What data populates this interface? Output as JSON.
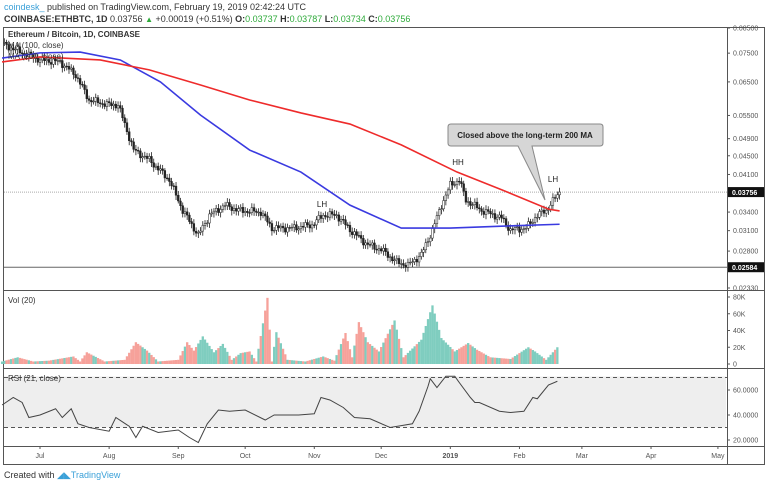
{
  "header": {
    "user": "coindesk_",
    "published": " published on TradingView.com, February 19, 2019 02:42:24 UTC",
    "symbol": "COINBASE:ETHBTC, 1D",
    "last": "0.03756",
    "change": "+0.00019 (+0.51%)",
    "o_label": "O:",
    "o": "0.03737",
    "h_label": "H:",
    "h": "0.03787",
    "l_label": "L:",
    "l": "0.03734",
    "c_label": "C:",
    "c": "0.03756"
  },
  "footer": {
    "created_with": "Created with",
    "brand": "TradingView"
  },
  "colors": {
    "ma100": "#3a3ae0",
    "ma200": "#ee2b2b",
    "vol_up": "#7fcdbf",
    "vol_down": "#f6a19a",
    "candle": "#222222"
  },
  "chart_data": [
    {
      "type": "line",
      "title": "Ethereum / Bitcoin, 1D, COINBASE",
      "scale": "log",
      "ylim": [
        0.0233,
        0.085
      ],
      "y_ticks": [
        "0.08500",
        "0.07500",
        "0.06500",
        "0.05500",
        "0.04900",
        "0.04500",
        "0.04100",
        "0.03400",
        "0.03100",
        "0.02800",
        "0.02330"
      ],
      "price_labels": [
        "0.03756",
        "0.02584"
      ],
      "x_ticks": [
        "Jul",
        "Aug",
        "Sep",
        "Oct",
        "Nov",
        "Dec",
        "2019",
        "Feb",
        "Mar",
        "Apr",
        "May"
      ],
      "series": [
        {
          "name": "Ethereum / Bitcoin",
          "style": "candles",
          "points": [
            [
              "2018-06-15",
              0.0781
            ],
            [
              "2018-07-01",
              0.0725
            ],
            [
              "2018-07-10",
              0.0718
            ],
            [
              "2018-07-17",
              0.0673
            ],
            [
              "2018-07-23",
              0.0594
            ],
            [
              "2018-08-01",
              0.058
            ],
            [
              "2018-08-05",
              0.058
            ],
            [
              "2018-08-12",
              0.0463
            ],
            [
              "2018-08-19",
              0.0441
            ],
            [
              "2018-08-28",
              0.0399
            ],
            [
              "2018-09-03",
              0.0343
            ],
            [
              "2018-09-10",
              0.0303
            ],
            [
              "2018-09-15",
              0.0335
            ],
            [
              "2018-09-22",
              0.0352
            ],
            [
              "2018-09-28",
              0.0343
            ],
            [
              "2018-10-08",
              0.034
            ],
            [
              "2018-10-13",
              0.0314
            ],
            [
              "2018-10-22",
              0.0314
            ],
            [
              "2018-10-31",
              0.0319
            ],
            [
              "2018-11-05",
              0.0335
            ],
            [
              "2018-11-11",
              0.0335
            ],
            [
              "2018-11-18",
              0.0308
            ],
            [
              "2018-11-25",
              0.0289
            ],
            [
              "2018-12-01",
              0.0282
            ],
            [
              "2018-12-08",
              0.0265
            ],
            [
              "2018-12-13",
              0.0261
            ],
            [
              "2018-12-19",
              0.0275
            ],
            [
              "2018-12-24",
              0.0311
            ],
            [
              "2018-12-28",
              0.0352
            ],
            [
              "2019-01-01",
              0.0389
            ],
            [
              "2019-01-05",
              0.0399
            ],
            [
              "2019-01-08",
              0.0361
            ],
            [
              "2019-01-15",
              0.0343
            ],
            [
              "2019-01-24",
              0.033
            ],
            [
              "2019-01-28",
              0.0311
            ],
            [
              "2019-02-04",
              0.0314
            ],
            [
              "2019-02-09",
              0.0335
            ],
            [
              "2019-02-13",
              0.0343
            ],
            [
              "2019-02-19",
              0.03756
            ]
          ]
        },
        {
          "name": "MA (100, close)",
          "color": "#3a3ae0",
          "points": [
            [
              "2018-06-14",
              0.0732
            ],
            [
              "2018-07-01",
              0.0751
            ],
            [
              "2018-07-19",
              0.0754
            ],
            [
              "2018-08-06",
              0.0725
            ],
            [
              "2018-08-24",
              0.065
            ],
            [
              "2018-09-11",
              0.0551
            ],
            [
              "2018-10-03",
              0.0463
            ],
            [
              "2018-10-26",
              0.0415
            ],
            [
              "2018-11-17",
              0.0352
            ],
            [
              "2018-12-10",
              0.0314
            ],
            [
              "2019-01-01",
              0.0314
            ],
            [
              "2019-01-24",
              0.0317
            ],
            [
              "2019-02-19",
              0.032
            ]
          ]
        },
        {
          "name": "MA (200, close)",
          "color": "#ee2b2b",
          "points": [
            [
              "2018-06-14",
              0.0718
            ],
            [
              "2018-07-01",
              0.0736
            ],
            [
              "2018-07-28",
              0.0725
            ],
            [
              "2018-08-19",
              0.069
            ],
            [
              "2018-09-11",
              0.064
            ],
            [
              "2018-10-03",
              0.0594
            ],
            [
              "2018-10-26",
              0.0557
            ],
            [
              "2018-11-17",
              0.0527
            ],
            [
              "2018-12-10",
              0.0475
            ],
            [
              "2019-01-04",
              0.0415
            ],
            [
              "2019-01-24",
              0.038
            ],
            [
              "2019-02-14",
              0.0345
            ],
            [
              "2019-02-19",
              0.0342
            ]
          ]
        }
      ],
      "annotations": [
        {
          "text": "LH",
          "date": "2018-11-05",
          "price": 0.035
        },
        {
          "text": "HH",
          "date": "2019-01-05",
          "price": 0.041
        },
        {
          "text": "LH",
          "date": "2019-02-18",
          "price": 0.039
        },
        {
          "text": "Closed above the long-term 200 MA",
          "type": "callout",
          "date": "2019-02-15",
          "price": 0.0345
        }
      ]
    },
    {
      "type": "area",
      "title": "Vol (20)",
      "ylim": [
        0,
        80000
      ],
      "y_ticks": [
        "80K",
        "60K",
        "40K",
        "20K",
        "0"
      ],
      "points": [
        [
          "2018-06-14",
          3000
        ],
        [
          "2018-06-21",
          8000
        ],
        [
          "2018-06-28",
          3000
        ],
        [
          "2018-07-05",
          4000
        ],
        [
          "2018-07-16",
          9000
        ],
        [
          "2018-07-19",
          3000
        ],
        [
          "2018-07-22",
          14000
        ],
        [
          "2018-07-30",
          3000
        ],
        [
          "2018-08-08",
          5000
        ],
        [
          "2018-08-13",
          26000
        ],
        [
          "2018-08-18",
          16000
        ],
        [
          "2018-08-23",
          3000
        ],
        [
          "2018-09-01",
          5000
        ],
        [
          "2018-09-05",
          26000
        ],
        [
          "2018-09-08",
          16000
        ],
        [
          "2018-09-12",
          33000
        ],
        [
          "2018-09-17",
          14000
        ],
        [
          "2018-09-21",
          24000
        ],
        [
          "2018-09-25",
          5000
        ],
        [
          "2018-09-29",
          13000
        ],
        [
          "2018-10-03",
          15000
        ],
        [
          "2018-10-06",
          3000
        ],
        [
          "2018-10-11",
          79000
        ],
        [
          "2018-10-13",
          3000
        ],
        [
          "2018-10-15",
          38000
        ],
        [
          "2018-10-20",
          5000
        ],
        [
          "2018-10-28",
          3000
        ],
        [
          "2018-11-05",
          9000
        ],
        [
          "2018-11-10",
          4000
        ],
        [
          "2018-11-15",
          37000
        ],
        [
          "2018-11-18",
          8000
        ],
        [
          "2018-11-21",
          50000
        ],
        [
          "2018-11-25",
          26000
        ],
        [
          "2018-11-30",
          15000
        ],
        [
          "2018-12-07",
          52000
        ],
        [
          "2018-12-11",
          8000
        ],
        [
          "2018-12-19",
          29000
        ],
        [
          "2018-12-24",
          70000
        ],
        [
          "2018-12-28",
          31000
        ],
        [
          "2019-01-03",
          15000
        ],
        [
          "2019-01-09",
          25000
        ],
        [
          "2019-01-13",
          17000
        ],
        [
          "2019-01-19",
          8000
        ],
        [
          "2019-01-28",
          6000
        ],
        [
          "2019-02-05",
          20000
        ],
        [
          "2019-02-08",
          15000
        ],
        [
          "2019-02-13",
          5000
        ],
        [
          "2019-02-18",
          20000
        ]
      ]
    },
    {
      "type": "line",
      "title": "RSI (21, close)",
      "ylim": [
        15,
        75
      ],
      "y_ticks": [
        "60.0000",
        "40.0000",
        "20.0000"
      ],
      "bands": [
        30,
        70
      ],
      "points": [
        [
          "2018-06-14",
          48
        ],
        [
          "2018-06-19",
          54
        ],
        [
          "2018-06-23",
          50
        ],
        [
          "2018-06-26",
          38
        ],
        [
          "2018-07-01",
          40
        ],
        [
          "2018-07-08",
          45
        ],
        [
          "2018-07-11",
          38
        ],
        [
          "2018-07-15",
          45
        ],
        [
          "2018-07-18",
          33
        ],
        [
          "2018-07-23",
          30
        ],
        [
          "2018-08-01",
          27
        ],
        [
          "2018-08-04",
          38
        ],
        [
          "2018-08-10",
          31
        ],
        [
          "2018-08-13",
          22
        ],
        [
          "2018-08-16",
          31
        ],
        [
          "2018-08-23",
          26
        ],
        [
          "2018-09-01",
          28
        ],
        [
          "2018-09-06",
          22
        ],
        [
          "2018-09-10",
          18
        ],
        [
          "2018-09-14",
          33
        ],
        [
          "2018-09-19",
          44
        ],
        [
          "2018-09-24",
          43
        ],
        [
          "2018-10-01",
          44
        ],
        [
          "2018-10-10",
          36
        ],
        [
          "2018-10-14",
          40
        ],
        [
          "2018-10-25",
          40
        ],
        [
          "2018-11-01",
          41
        ],
        [
          "2018-11-04",
          54
        ],
        [
          "2018-11-08",
          52
        ],
        [
          "2018-11-14",
          46
        ],
        [
          "2018-11-19",
          38
        ],
        [
          "2018-11-26",
          37
        ],
        [
          "2018-12-05",
          30
        ],
        [
          "2018-12-15",
          33
        ],
        [
          "2018-12-18",
          43
        ],
        [
          "2018-12-22",
          63
        ],
        [
          "2018-12-23",
          69
        ],
        [
          "2018-12-26",
          62
        ],
        [
          "2018-12-30",
          71
        ],
        [
          "2019-01-03",
          71
        ],
        [
          "2019-01-05",
          66
        ],
        [
          "2019-01-10",
          54
        ],
        [
          "2019-01-12",
          50
        ],
        [
          "2019-01-14",
          50
        ],
        [
          "2019-01-23",
          43
        ],
        [
          "2019-01-28",
          42
        ],
        [
          "2019-02-03",
          43
        ],
        [
          "2019-02-07",
          54
        ],
        [
          "2019-02-09",
          53
        ],
        [
          "2019-02-14",
          64
        ],
        [
          "2019-02-18",
          67
        ]
      ]
    }
  ]
}
